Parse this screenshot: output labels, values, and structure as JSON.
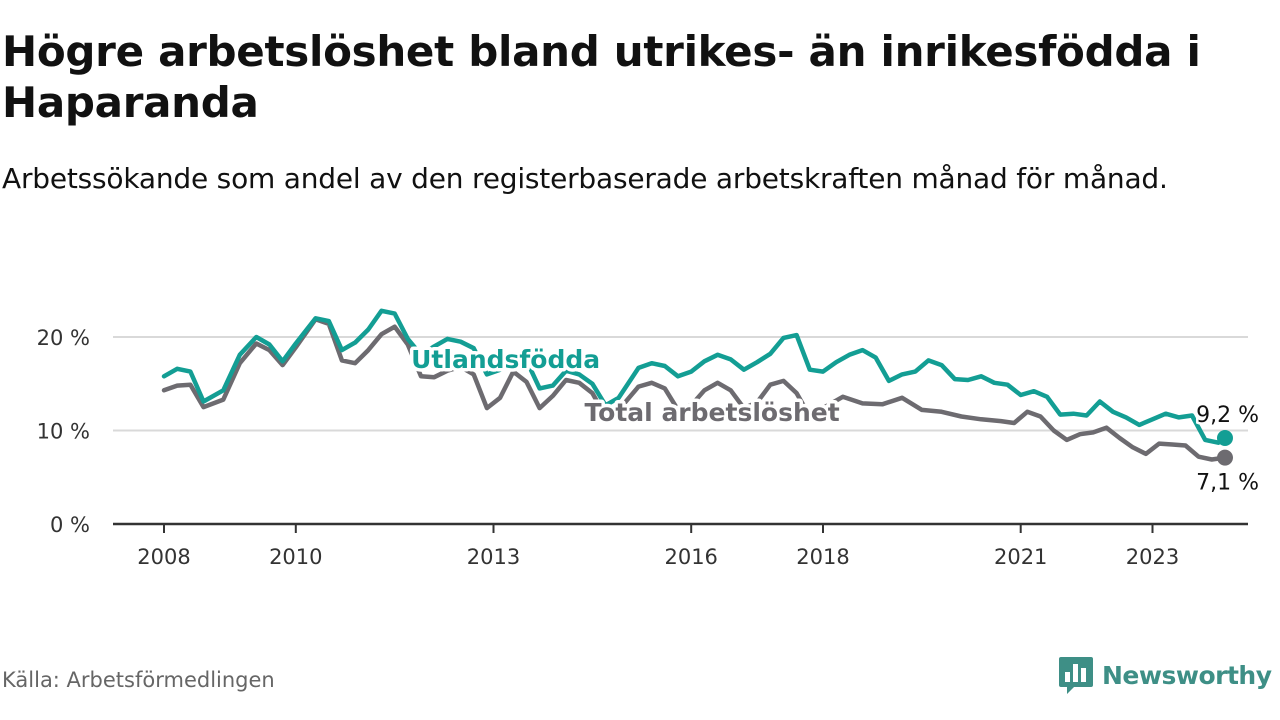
{
  "header": {
    "title": "Högre arbetslöshet bland utrikes- än inrikesfödda i Haparanda",
    "subtitle": "Arbetssökande som andel av den registerbaserade arbetskraften månad för månad."
  },
  "footer": {
    "source": "Källa: Arbetsförmedlingen",
    "brand": "Newsworthy"
  },
  "colors": {
    "utlandsfodda": "#139e94",
    "total": "#6d6b70",
    "grid": "#d9d9d9",
    "axis": "#333333",
    "text": "#111111",
    "brand": "#3e8f86"
  },
  "chart_data": {
    "type": "line",
    "title": "Högre arbetslöshet bland utrikes- än inrikesfödda i Haparanda",
    "xlabel": "",
    "ylabel": "",
    "xlim": [
      2008,
      2024.7
    ],
    "ylim": [
      0,
      25
    ],
    "x_ticks": [
      {
        "value": 2008,
        "label": "2008"
      },
      {
        "value": 2010,
        "label": "2010"
      },
      {
        "value": 2013,
        "label": "2013"
      },
      {
        "value": 2016,
        "label": "2016"
      },
      {
        "value": 2018,
        "label": "2018"
      },
      {
        "value": 2021,
        "label": "2021"
      },
      {
        "value": 2023,
        "label": "2023"
      }
    ],
    "y_ticks": [
      {
        "value": 0,
        "label": "0 %"
      },
      {
        "value": 10,
        "label": "10 %"
      },
      {
        "value": 20,
        "label": "20 %"
      }
    ],
    "series": [
      {
        "name": "Total arbetslöshet",
        "end_label": "7,1 %",
        "points": [
          [
            2008.0,
            14.3
          ],
          [
            2008.2,
            14.8
          ],
          [
            2008.4,
            14.9
          ],
          [
            2008.6,
            12.5
          ],
          [
            2008.9,
            13.3
          ],
          [
            2009.15,
            17.2
          ],
          [
            2009.4,
            19.3
          ],
          [
            2009.6,
            18.6
          ],
          [
            2009.8,
            17.0
          ],
          [
            2010.0,
            18.9
          ],
          [
            2010.3,
            21.9
          ],
          [
            2010.5,
            21.4
          ],
          [
            2010.7,
            17.5
          ],
          [
            2010.9,
            17.2
          ],
          [
            2011.1,
            18.6
          ],
          [
            2011.3,
            20.3
          ],
          [
            2011.5,
            21.1
          ],
          [
            2011.7,
            19.2
          ],
          [
            2011.9,
            15.8
          ],
          [
            2012.1,
            15.7
          ],
          [
            2012.3,
            16.4
          ],
          [
            2012.5,
            16.8
          ],
          [
            2012.7,
            16.0
          ],
          [
            2012.9,
            12.4
          ],
          [
            2013.1,
            13.5
          ],
          [
            2013.3,
            16.3
          ],
          [
            2013.5,
            15.2
          ],
          [
            2013.7,
            12.4
          ],
          [
            2013.9,
            13.7
          ],
          [
            2014.1,
            15.4
          ],
          [
            2014.3,
            15.1
          ],
          [
            2014.5,
            14.0
          ],
          [
            2014.7,
            11.5
          ],
          [
            2014.9,
            12.2
          ],
          [
            2015.2,
            14.7
          ],
          [
            2015.4,
            15.1
          ],
          [
            2015.6,
            14.5
          ],
          [
            2015.8,
            12.2
          ],
          [
            2016.0,
            12.7
          ],
          [
            2016.2,
            14.3
          ],
          [
            2016.4,
            15.1
          ],
          [
            2016.6,
            14.3
          ],
          [
            2016.8,
            12.4
          ],
          [
            2017.0,
            13.0
          ],
          [
            2017.2,
            14.9
          ],
          [
            2017.4,
            15.3
          ],
          [
            2017.6,
            14.0
          ],
          [
            2017.8,
            11.5
          ],
          [
            2018.0,
            12.4
          ],
          [
            2018.3,
            13.6
          ],
          [
            2018.6,
            12.9
          ],
          [
            2018.9,
            12.8
          ],
          [
            2019.2,
            13.5
          ],
          [
            2019.5,
            12.2
          ],
          [
            2019.8,
            12.0
          ],
          [
            2020.1,
            11.5
          ],
          [
            2020.4,
            11.2
          ],
          [
            2020.7,
            11.0
          ],
          [
            2020.9,
            10.8
          ],
          [
            2021.1,
            12.0
          ],
          [
            2021.3,
            11.5
          ],
          [
            2021.5,
            10.0
          ],
          [
            2021.7,
            9.0
          ],
          [
            2021.9,
            9.6
          ],
          [
            2022.1,
            9.8
          ],
          [
            2022.3,
            10.3
          ],
          [
            2022.5,
            9.2
          ],
          [
            2022.7,
            8.2
          ],
          [
            2022.9,
            7.5
          ],
          [
            2023.1,
            8.6
          ],
          [
            2023.3,
            8.5
          ],
          [
            2023.5,
            8.4
          ],
          [
            2023.7,
            7.2
          ],
          [
            2023.9,
            6.9
          ],
          [
            2024.1,
            7.1
          ]
        ]
      },
      {
        "name": "Utlandsfödda",
        "end_label": "9,2 %",
        "points": [
          [
            2008.0,
            15.8
          ],
          [
            2008.2,
            16.6
          ],
          [
            2008.4,
            16.3
          ],
          [
            2008.6,
            13.1
          ],
          [
            2008.9,
            14.3
          ],
          [
            2009.15,
            18.1
          ],
          [
            2009.4,
            20.0
          ],
          [
            2009.6,
            19.2
          ],
          [
            2009.8,
            17.4
          ],
          [
            2010.0,
            19.3
          ],
          [
            2010.3,
            22.0
          ],
          [
            2010.5,
            21.7
          ],
          [
            2010.7,
            18.6
          ],
          [
            2010.9,
            19.4
          ],
          [
            2011.1,
            20.8
          ],
          [
            2011.3,
            22.8
          ],
          [
            2011.5,
            22.5
          ],
          [
            2011.7,
            19.8
          ],
          [
            2011.9,
            18.1
          ],
          [
            2012.1,
            19.0
          ],
          [
            2012.3,
            19.8
          ],
          [
            2012.5,
            19.5
          ],
          [
            2012.7,
            18.8
          ],
          [
            2012.9,
            16.0
          ],
          [
            2013.1,
            16.5
          ],
          [
            2013.3,
            18.0
          ],
          [
            2013.5,
            17.5
          ],
          [
            2013.7,
            14.5
          ],
          [
            2013.9,
            14.8
          ],
          [
            2014.1,
            16.4
          ],
          [
            2014.3,
            16.0
          ],
          [
            2014.5,
            15.0
          ],
          [
            2014.7,
            12.7
          ],
          [
            2014.9,
            13.5
          ],
          [
            2015.2,
            16.7
          ],
          [
            2015.4,
            17.2
          ],
          [
            2015.6,
            16.9
          ],
          [
            2015.8,
            15.8
          ],
          [
            2016.0,
            16.3
          ],
          [
            2016.2,
            17.4
          ],
          [
            2016.4,
            18.1
          ],
          [
            2016.6,
            17.6
          ],
          [
            2016.8,
            16.5
          ],
          [
            2017.0,
            17.3
          ],
          [
            2017.2,
            18.2
          ],
          [
            2017.4,
            19.9
          ],
          [
            2017.6,
            20.2
          ],
          [
            2017.8,
            16.5
          ],
          [
            2018.0,
            16.3
          ],
          [
            2018.2,
            17.3
          ],
          [
            2018.4,
            18.1
          ],
          [
            2018.6,
            18.6
          ],
          [
            2018.8,
            17.8
          ],
          [
            2019.0,
            15.3
          ],
          [
            2019.2,
            16.0
          ],
          [
            2019.4,
            16.3
          ],
          [
            2019.6,
            17.5
          ],
          [
            2019.8,
            17.0
          ],
          [
            2020.0,
            15.5
          ],
          [
            2020.2,
            15.4
          ],
          [
            2020.4,
            15.8
          ],
          [
            2020.6,
            15.1
          ],
          [
            2020.8,
            14.9
          ],
          [
            2021.0,
            13.8
          ],
          [
            2021.2,
            14.2
          ],
          [
            2021.4,
            13.6
          ],
          [
            2021.6,
            11.7
          ],
          [
            2021.8,
            11.8
          ],
          [
            2022.0,
            11.6
          ],
          [
            2022.2,
            13.1
          ],
          [
            2022.4,
            12.0
          ],
          [
            2022.6,
            11.4
          ],
          [
            2022.8,
            10.6
          ],
          [
            2023.0,
            11.2
          ],
          [
            2023.2,
            11.8
          ],
          [
            2023.4,
            11.4
          ],
          [
            2023.6,
            11.6
          ],
          [
            2023.8,
            9.0
          ],
          [
            2024.0,
            8.7
          ],
          [
            2024.1,
            9.2
          ]
        ]
      }
    ]
  }
}
